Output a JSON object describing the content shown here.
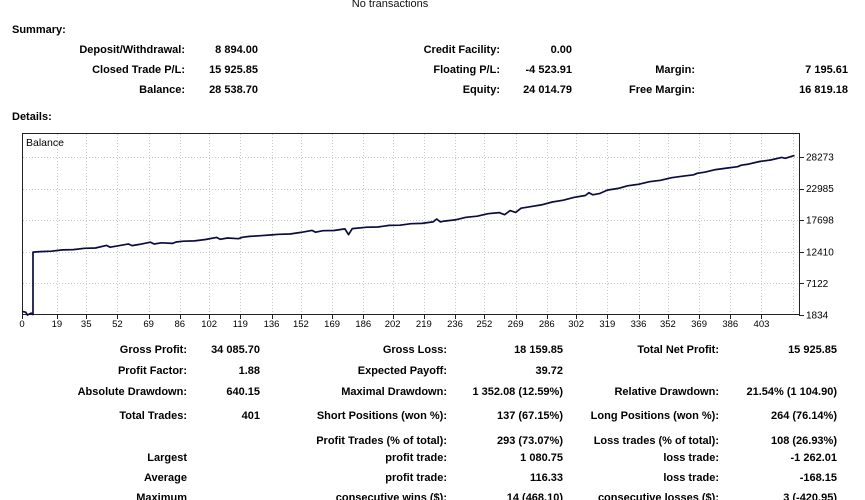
{
  "header": {
    "no_transactions": "No transactions"
  },
  "summary": {
    "title": "Summary:",
    "rows": [
      [
        "Deposit/Withdrawal:",
        "8 894.00",
        "Credit Facility:",
        "0.00",
        "",
        ""
      ],
      [
        "Closed Trade P/L:",
        "15 925.85",
        "Floating P/L:",
        "-4 523.91",
        "Margin:",
        "7 195.61"
      ],
      [
        "Balance:",
        "28 538.70",
        "Equity:",
        "24 014.79",
        "Free Margin:",
        "16 819.18"
      ]
    ]
  },
  "details": {
    "title": "Details:"
  },
  "stats": {
    "group1": [
      [
        "Gross Profit:",
        "34 085.70",
        "Gross Loss:",
        "18 159.85",
        "Total Net Profit:",
        "15 925.85"
      ],
      [
        "Profit Factor:",
        "1.88",
        "Expected Payoff:",
        "39.72",
        "",
        ""
      ],
      [
        "Absolute Drawdown:",
        "640.15",
        "Maximal Drawdown:",
        "1 352.08 (12.59%)",
        "Relative Drawdown:",
        "21.54% (1 104.90)"
      ]
    ],
    "group2": [
      [
        "Total Trades:",
        "401",
        "Short Positions (won %):",
        "137 (67.15%)",
        "Long Positions (won %):",
        "264 (76.14%)"
      ],
      [
        "",
        "",
        "Profit Trades (% of total):",
        "293 (73.07%)",
        "Loss trades (% of total):",
        "108 (26.93%)"
      ]
    ],
    "group3": [
      [
        "Largest",
        "",
        "profit trade:",
        "1 080.75",
        "loss trade:",
        "-1 262.01"
      ],
      [
        "Average",
        "",
        "profit trade:",
        "116.33",
        "loss trade:",
        "-168.15"
      ],
      [
        "Maximum",
        "",
        "consecutive wins ($):",
        "14 (468.10)",
        "consecutive losses ($):",
        "3 (-420.95)"
      ]
    ]
  },
  "chart_data": {
    "type": "line",
    "title": "Balance",
    "legend_label": "Balance",
    "line_color": "#0b0b3d",
    "grid_color": "#c9c9c9",
    "border_color": "#222222",
    "x_ticks": [
      0,
      19,
      35,
      52,
      69,
      86,
      102,
      119,
      136,
      152,
      169,
      186,
      202,
      219,
      236,
      252,
      269,
      286,
      302,
      319,
      336,
      352,
      369,
      386,
      403
    ],
    "extra_grid_x": [
      420
    ],
    "y_ticks": [
      1834,
      7122,
      12410,
      17698,
      22985,
      28273
    ],
    "x_domain": [
      0,
      424
    ],
    "y_domain": [
      1834,
      32280
    ],
    "grid": true,
    "series": [
      {
        "name": "Balance",
        "points": [
          [
            0,
            2430
          ],
          [
            2,
            2300
          ],
          [
            3,
            1834
          ],
          [
            5,
            2150
          ],
          [
            6,
            1900
          ],
          [
            6,
            12350
          ],
          [
            10,
            12440
          ],
          [
            16,
            12500
          ],
          [
            22,
            12730
          ],
          [
            28,
            12780
          ],
          [
            34,
            12990
          ],
          [
            40,
            13050
          ],
          [
            46,
            13480
          ],
          [
            48,
            13180
          ],
          [
            52,
            13390
          ],
          [
            58,
            13710
          ],
          [
            60,
            13440
          ],
          [
            64,
            13650
          ],
          [
            70,
            14020
          ],
          [
            72,
            13710
          ],
          [
            76,
            13920
          ],
          [
            82,
            13820
          ],
          [
            84,
            14050
          ],
          [
            88,
            14180
          ],
          [
            94,
            14230
          ],
          [
            100,
            14470
          ],
          [
            106,
            14810
          ],
          [
            108,
            14500
          ],
          [
            112,
            14710
          ],
          [
            118,
            14590
          ],
          [
            120,
            14840
          ],
          [
            124,
            14980
          ],
          [
            130,
            15100
          ],
          [
            136,
            15240
          ],
          [
            140,
            15330
          ],
          [
            146,
            15390
          ],
          [
            152,
            15650
          ],
          [
            158,
            15990
          ],
          [
            160,
            15690
          ],
          [
            164,
            15930
          ],
          [
            170,
            15970
          ],
          [
            176,
            16230
          ],
          [
            178,
            15280
          ],
          [
            180,
            16280
          ],
          [
            188,
            16520
          ],
          [
            194,
            16560
          ],
          [
            200,
            16820
          ],
          [
            206,
            16860
          ],
          [
            212,
            17110
          ],
          [
            218,
            17150
          ],
          [
            224,
            17400
          ],
          [
            226,
            17900
          ],
          [
            228,
            17410
          ],
          [
            230,
            17550
          ],
          [
            236,
            17750
          ],
          [
            242,
            18170
          ],
          [
            248,
            18360
          ],
          [
            254,
            18780
          ],
          [
            260,
            18970
          ],
          [
            263,
            18620
          ],
          [
            266,
            19300
          ],
          [
            269,
            19000
          ],
          [
            272,
            19700
          ],
          [
            277,
            19950
          ],
          [
            283,
            20250
          ],
          [
            289,
            20740
          ],
          [
            295,
            21040
          ],
          [
            301,
            21530
          ],
          [
            307,
            21830
          ],
          [
            309,
            22300
          ],
          [
            311,
            21950
          ],
          [
            315,
            22180
          ],
          [
            319,
            22720
          ],
          [
            325,
            23020
          ],
          [
            330,
            23450
          ],
          [
            336,
            23690
          ],
          [
            342,
            24130
          ],
          [
            348,
            24370
          ],
          [
            354,
            24810
          ],
          [
            360,
            25050
          ],
          [
            366,
            25290
          ],
          [
            368,
            25540
          ],
          [
            372,
            25730
          ],
          [
            378,
            26160
          ],
          [
            384,
            26400
          ],
          [
            390,
            26650
          ],
          [
            392,
            26900
          ],
          [
            396,
            27080
          ],
          [
            402,
            27520
          ],
          [
            408,
            27760
          ],
          [
            414,
            28200
          ],
          [
            416,
            28050
          ],
          [
            421,
            28540
          ]
        ]
      }
    ]
  }
}
